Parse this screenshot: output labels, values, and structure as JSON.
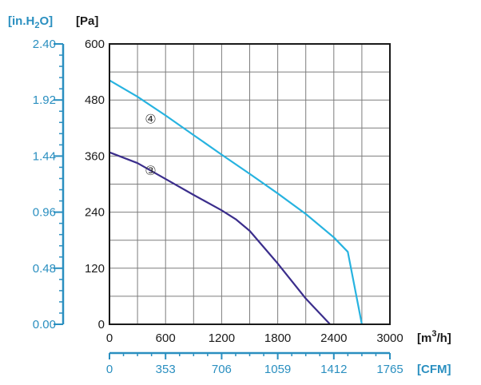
{
  "chart_data": {
    "type": "line",
    "xlim": [
      0,
      3000
    ],
    "ylim": [
      0,
      600
    ],
    "grid": true,
    "x_ticks": [
      0,
      300,
      600,
      900,
      1200,
      1500,
      1800,
      2100,
      2400,
      2700,
      3000
    ],
    "x_tick_labels": [
      "0",
      "",
      "600",
      "",
      "1200",
      "",
      "1800",
      "",
      "2400",
      "",
      "3000"
    ],
    "y_ticks": [
      0,
      60,
      120,
      180,
      240,
      300,
      360,
      420,
      480,
      540,
      600
    ],
    "y_tick_labels": [
      "0",
      "",
      "120",
      "",
      "240",
      "",
      "360",
      "",
      "480",
      "",
      "600"
    ],
    "xlabel_html": "[m³/h]",
    "xlabel_parts": [
      "[m",
      "3",
      "/h]"
    ],
    "ylabel": "[Pa]",
    "secondary_x": {
      "label": "[CFM]",
      "ticks": [
        "0",
        "353",
        "706",
        "1059",
        "1412",
        "1765"
      ]
    },
    "secondary_y": {
      "label_parts": [
        "[in.H",
        "2",
        "O]"
      ],
      "ticks": [
        "0.00",
        "0.48",
        "0.96",
        "1.44",
        "1.92",
        "2.40"
      ]
    },
    "series": [
      {
        "name": "③",
        "color": "#3b2e8c",
        "points": [
          [
            0,
            368
          ],
          [
            300,
            345
          ],
          [
            600,
            311
          ],
          [
            900,
            277
          ],
          [
            1200,
            244
          ],
          [
            1350,
            225
          ],
          [
            1500,
            200
          ],
          [
            1800,
            130
          ],
          [
            2100,
            55
          ],
          [
            2360,
            0
          ]
        ]
      },
      {
        "name": "④",
        "color": "#27b3e0",
        "points": [
          [
            0,
            522
          ],
          [
            300,
            487
          ],
          [
            600,
            447
          ],
          [
            900,
            405
          ],
          [
            1200,
            363
          ],
          [
            1500,
            322
          ],
          [
            1800,
            280
          ],
          [
            2100,
            236
          ],
          [
            2400,
            186
          ],
          [
            2550,
            155
          ],
          [
            2700,
            0
          ]
        ]
      }
    ],
    "labels": [
      {
        "text": "④",
        "x": 440,
        "y": 440
      },
      {
        "text": "③",
        "x": 440,
        "y": 330
      }
    ]
  }
}
